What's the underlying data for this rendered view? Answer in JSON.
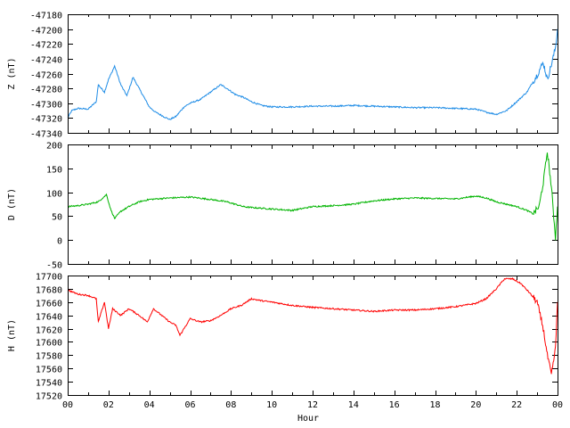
{
  "chart_data": [
    {
      "type": "line",
      "ylabel": "Z (nT)",
      "ylim": [
        -47340,
        -47180
      ],
      "yticks": [
        -47340,
        -47320,
        -47300,
        -47280,
        -47260,
        -47240,
        -47220,
        -47200,
        -47180
      ],
      "xlim": [
        0,
        24
      ],
      "color": "#1e8ce6",
      "series": [
        {
          "x": [
            0,
            0.2,
            0.5,
            1,
            1.4,
            1.5,
            1.8,
            2.0,
            2.3,
            2.6,
            2.9,
            3.2,
            3.6,
            4.0,
            4.3,
            4.7,
            5.0,
            5.3,
            5.7,
            6.0,
            6.5,
            7.0,
            7.5,
            7.8,
            8.2,
            8.6,
            9.0,
            9.5,
            10,
            11,
            12,
            13,
            14,
            15,
            16,
            17,
            18,
            19,
            20,
            20.5,
            21,
            21.5,
            22,
            22.5,
            23,
            23.3,
            23.5,
            23.7,
            23.9,
            24
          ],
          "y": [
            -47320,
            -47310,
            -47307,
            -47308,
            -47298,
            -47275,
            -47285,
            -47268,
            -47250,
            -47275,
            -47290,
            -47265,
            -47285,
            -47305,
            -47312,
            -47318,
            -47322,
            -47318,
            -47305,
            -47300,
            -47295,
            -47285,
            -47275,
            -47280,
            -47288,
            -47292,
            -47298,
            -47303,
            -47305,
            -47305,
            -47304,
            -47304,
            -47303,
            -47304,
            -47305,
            -47306,
            -47306,
            -47307,
            -47308,
            -47312,
            -47315,
            -47310,
            -47298,
            -47285,
            -47262,
            -47245,
            -47268,
            -47248,
            -47225,
            -47200
          ]
        }
      ]
    },
    {
      "type": "line",
      "ylabel": "D (nT)",
      "ylim": [
        -50,
        200
      ],
      "yticks": [
        -50,
        0,
        50,
        100,
        150,
        200
      ],
      "xlim": [
        0,
        24
      ],
      "color": "#00b400",
      "series": [
        {
          "x": [
            0,
            0.5,
            1,
            1.5,
            1.9,
            2.1,
            2.3,
            2.6,
            3.0,
            3.5,
            4,
            5,
            6,
            7,
            7.8,
            8.2,
            8.6,
            9,
            10,
            11,
            12,
            13,
            14,
            15,
            16,
            17,
            18,
            19,
            20,
            20.5,
            21,
            21.5,
            22,
            22.5,
            22.8,
            23.1,
            23.3,
            23.5,
            23.7,
            23.9,
            24
          ],
          "y": [
            70,
            72,
            75,
            80,
            95,
            65,
            45,
            60,
            70,
            80,
            85,
            88,
            90,
            85,
            80,
            75,
            70,
            68,
            65,
            62,
            70,
            72,
            75,
            82,
            86,
            88,
            87,
            86,
            92,
            88,
            80,
            75,
            70,
            62,
            55,
            70,
            120,
            185,
            110,
            5,
            70
          ]
        }
      ]
    },
    {
      "type": "line",
      "ylabel": "H (nT)",
      "xlabel": "Hour",
      "ylim": [
        17520,
        17700
      ],
      "yticks": [
        17520,
        17540,
        17560,
        17580,
        17600,
        17620,
        17640,
        17660,
        17680,
        17700
      ],
      "xlim": [
        0,
        24
      ],
      "xticks": [
        "00",
        "02",
        "04",
        "06",
        "08",
        "10",
        "12",
        "14",
        "16",
        "18",
        "20",
        "22",
        "00"
      ],
      "color": "#ff0000",
      "series": [
        {
          "x": [
            0,
            0.5,
            1,
            1.4,
            1.5,
            1.8,
            2.0,
            2.2,
            2.6,
            3.0,
            3.5,
            3.9,
            4.2,
            4.6,
            5.0,
            5.3,
            5.5,
            6.0,
            6.5,
            7,
            7.5,
            8,
            8.5,
            9,
            9.5,
            10,
            11,
            12,
            13,
            14,
            15,
            16,
            17,
            18,
            19,
            20,
            20.5,
            21,
            21.4,
            21.8,
            22.2,
            22.6,
            23,
            23.3,
            23.5,
            23.7,
            23.9,
            24
          ],
          "y": [
            17678,
            17672,
            17670,
            17665,
            17630,
            17660,
            17620,
            17650,
            17640,
            17650,
            17640,
            17630,
            17650,
            17640,
            17630,
            17625,
            17610,
            17635,
            17630,
            17632,
            17640,
            17650,
            17655,
            17665,
            17662,
            17660,
            17655,
            17652,
            17650,
            17648,
            17646,
            17648,
            17648,
            17650,
            17653,
            17658,
            17665,
            17680,
            17695,
            17695,
            17688,
            17675,
            17660,
            17620,
            17580,
            17550,
            17590,
            17660
          ]
        }
      ]
    }
  ]
}
